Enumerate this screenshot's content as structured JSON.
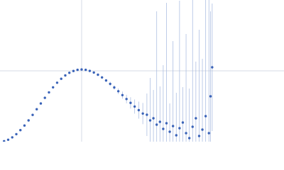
{
  "chart_data": {
    "type": "scatter",
    "x": [
      0.05,
      0.1,
      0.15,
      0.2,
      0.25,
      0.3,
      0.35,
      0.4,
      0.45,
      0.5,
      0.55,
      0.6,
      0.65,
      0.7,
      0.75,
      0.8,
      0.85,
      0.9,
      0.95,
      1.0,
      1.05,
      1.1,
      1.15,
      1.2,
      1.25,
      1.3,
      1.35,
      1.4,
      1.45,
      1.5,
      1.55,
      1.6,
      1.65,
      1.7,
      1.75,
      1.8,
      1.84,
      1.88,
      1.92,
      1.96,
      2.0,
      2.04,
      2.08,
      2.12,
      2.16,
      2.2,
      2.24,
      2.28,
      2.32,
      2.36,
      2.4,
      2.44,
      2.48,
      2.52,
      2.56,
      2.58,
      2.6
    ],
    "series": [
      {
        "color": "#3a63b8",
        "error_color": "#aebfe2",
        "values": [
          0.007,
          0.027,
          0.061,
          0.106,
          0.163,
          0.228,
          0.3,
          0.378,
          0.458,
          0.539,
          0.619,
          0.696,
          0.767,
          0.832,
          0.888,
          0.935,
          0.972,
          0.998,
          1.014,
          1.019,
          1.014,
          0.999,
          0.976,
          0.945,
          0.907,
          0.864,
          0.816,
          0.765,
          0.712,
          0.657,
          0.602,
          0.548,
          0.496,
          0.445,
          0.397,
          0.38,
          0.3,
          0.33,
          0.24,
          0.28,
          0.18,
          0.26,
          0.14,
          0.22,
          0.09,
          0.19,
          0.27,
          0.12,
          0.05,
          0.21,
          0.33,
          0.08,
          0.17,
          0.36,
          0.12,
          0.64,
          1.05
        ],
        "errors": [
          0.005,
          0.005,
          0.005,
          0.006,
          0.006,
          0.007,
          0.007,
          0.008,
          0.008,
          0.009,
          0.009,
          0.01,
          0.01,
          0.011,
          0.011,
          0.012,
          0.012,
          0.013,
          0.013,
          0.014,
          0.015,
          0.016,
          0.017,
          0.018,
          0.02,
          0.02,
          0.03,
          0.03,
          0.04,
          0.05,
          0.06,
          0.08,
          0.1,
          0.12,
          0.15,
          0.3,
          0.6,
          0.4,
          1.6,
          0.5,
          0.9,
          1.7,
          0.4,
          1.2,
          0.6,
          1.8,
          0.5,
          1.4,
          0.7,
          1.9,
          0.8,
          1.5,
          1.0,
          1.7,
          1.9,
          1.2,
          0.9
        ]
      }
    ],
    "xlim": [
      0,
      3.48
    ],
    "ylim": [
      0,
      2
    ],
    "xticks": [
      1
    ],
    "yticks": [
      1
    ],
    "grid": true
  }
}
